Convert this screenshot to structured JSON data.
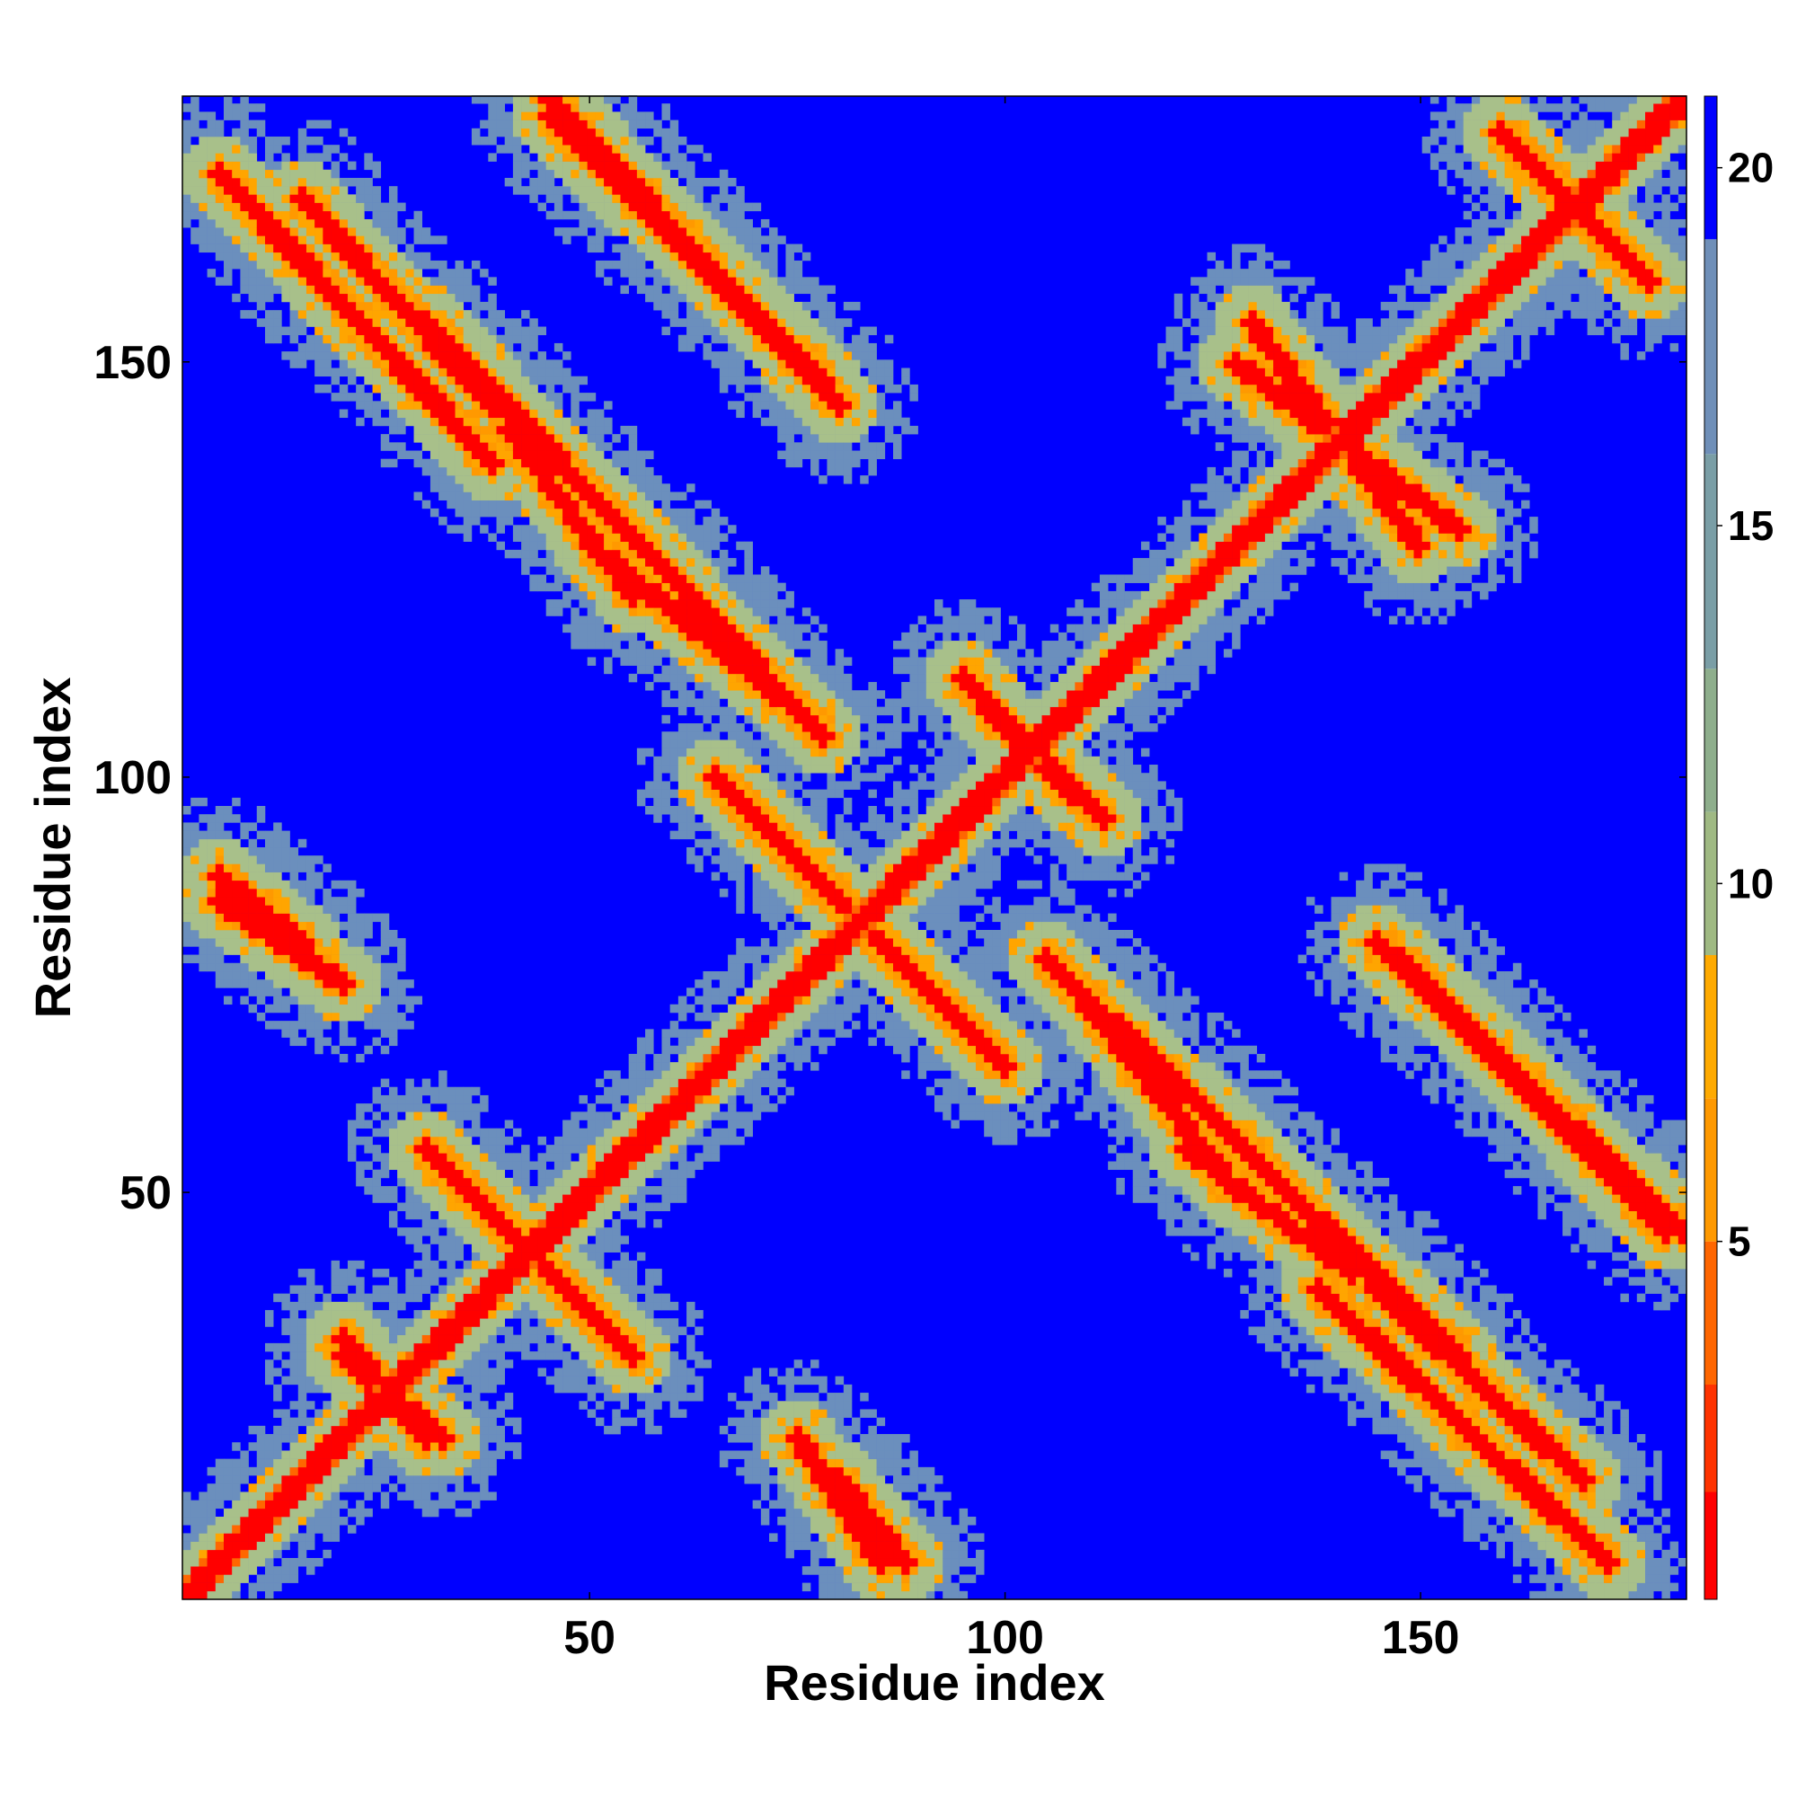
{
  "chart_data": {
    "type": "heatmap",
    "title": "",
    "xlabel": "Residue index",
    "ylabel": "Residue index",
    "n_residues": 182,
    "xlim": [
      1,
      182
    ],
    "ylim": [
      1,
      182
    ],
    "xticks": [
      50,
      100,
      150
    ],
    "yticks": [
      50,
      100,
      150
    ],
    "colorbar": {
      "ticks": [
        5,
        10,
        15,
        20
      ],
      "range": [
        0,
        21
      ],
      "colors": [
        "#ff0000",
        "#ff3300",
        "#ff6600",
        "#ff9900",
        "#ffaa00",
        "#9fb983",
        "#8eae8c",
        "#7a9ea6",
        "#6f8fb8",
        "#0000ff"
      ],
      "cutoff": 20
    },
    "colors": {
      "background": "#0000ff",
      "diagonal": "#ff0000",
      "contact": "#ffa500",
      "neighborhood": "#a8c08a",
      "far": "#6b8fbd"
    },
    "contact_bands": [
      {
        "x0": 5,
        "y0": 173,
        "x1": 38,
        "y1": 138
      },
      {
        "x0": 45,
        "y0": 182,
        "x1": 80,
        "y1": 145
      },
      {
        "x0": 30,
        "y0": 155,
        "x1": 78,
        "y1": 105
      },
      {
        "x0": 108,
        "y0": 75,
        "x1": 128,
        "y1": 50
      },
      {
        "x0": 122,
        "y0": 55,
        "x1": 142,
        "y1": 40
      },
      {
        "x0": 145,
        "y0": 38,
        "x1": 170,
        "y1": 15
      },
      {
        "x0": 148,
        "y0": 78,
        "x1": 180,
        "y1": 45
      },
      {
        "x0": 40,
        "y0": 45,
        "x1": 55,
        "y1": 30
      },
      {
        "x0": 75,
        "y0": 90,
        "x1": 100,
        "y1": 65
      },
      {
        "x0": 5,
        "y0": 85,
        "x1": 20,
        "y1": 75
      },
      {
        "x0": 20,
        "y0": 30,
        "x1": 32,
        "y1": 20
      },
      {
        "x0": 80,
        "y0": 15,
        "x1": 88,
        "y1": 5
      },
      {
        "x0": 98,
        "y0": 108,
        "x1": 112,
        "y1": 95
      },
      {
        "x0": 128,
        "y0": 150,
        "x1": 155,
        "y1": 130
      },
      {
        "x0": 160,
        "y0": 178,
        "x1": 178,
        "y1": 160
      }
    ]
  }
}
